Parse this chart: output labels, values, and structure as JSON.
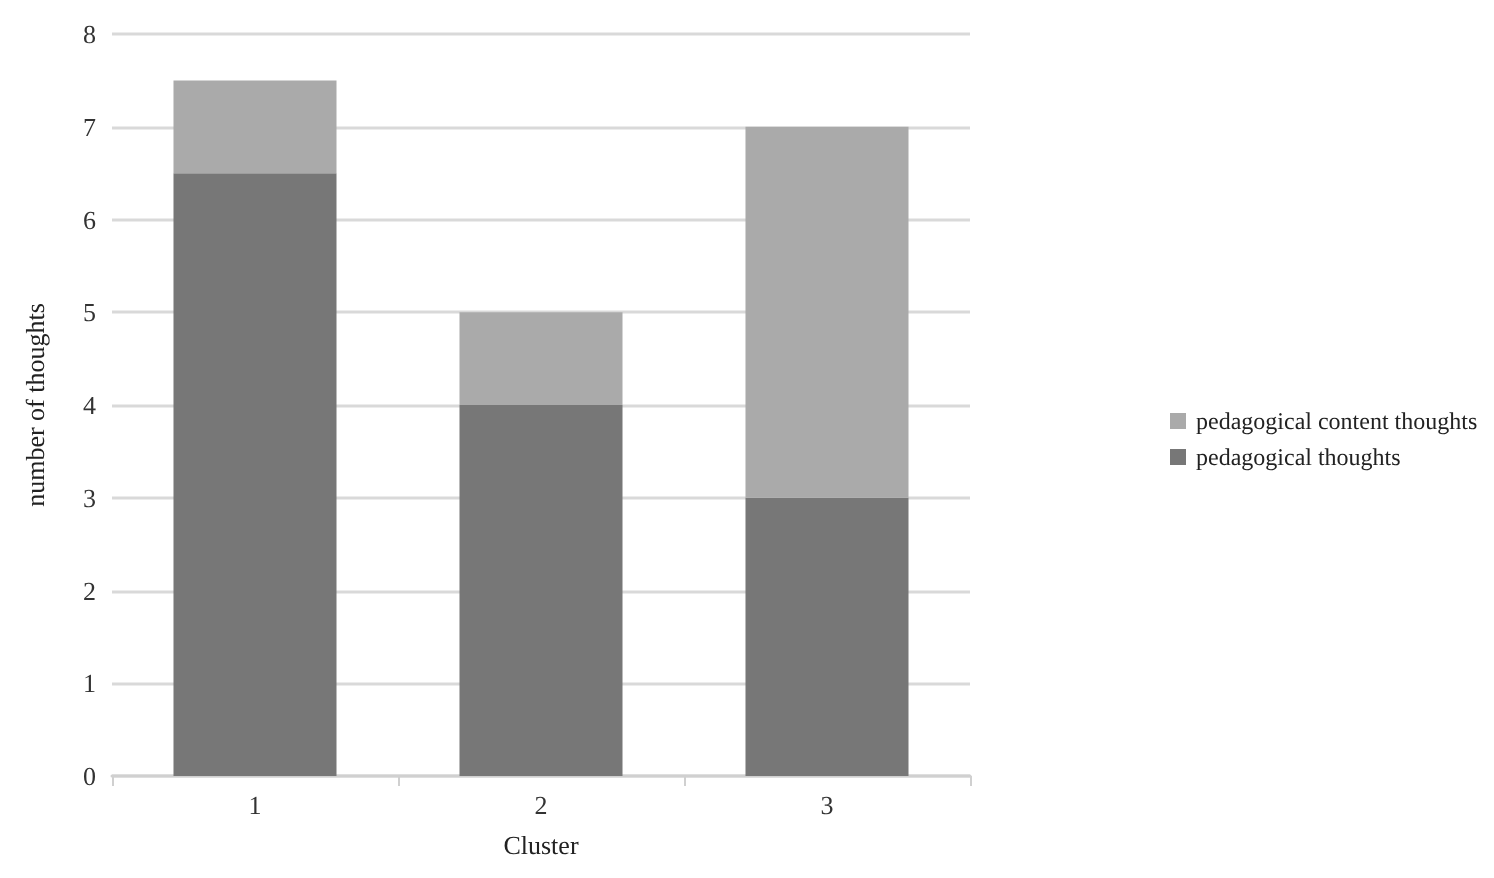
{
  "chart_data": {
    "type": "bar",
    "stacked": true,
    "xlabel": "Cluster",
    "ylabel": "number of thoughts",
    "categories": [
      "1",
      "2",
      "3"
    ],
    "series": [
      {
        "name": "pedagogical thoughts",
        "color": "#777777",
        "values": [
          6.5,
          4,
          3
        ]
      },
      {
        "name": "pedagogical content thoughts",
        "color": "#aaaaaa",
        "values": [
          1,
          1,
          4
        ]
      }
    ],
    "ylim": [
      0,
      8
    ],
    "yticks": [
      0,
      1,
      2,
      3,
      4,
      5,
      6,
      7,
      8
    ],
    "grid": "y",
    "legend": "right"
  }
}
